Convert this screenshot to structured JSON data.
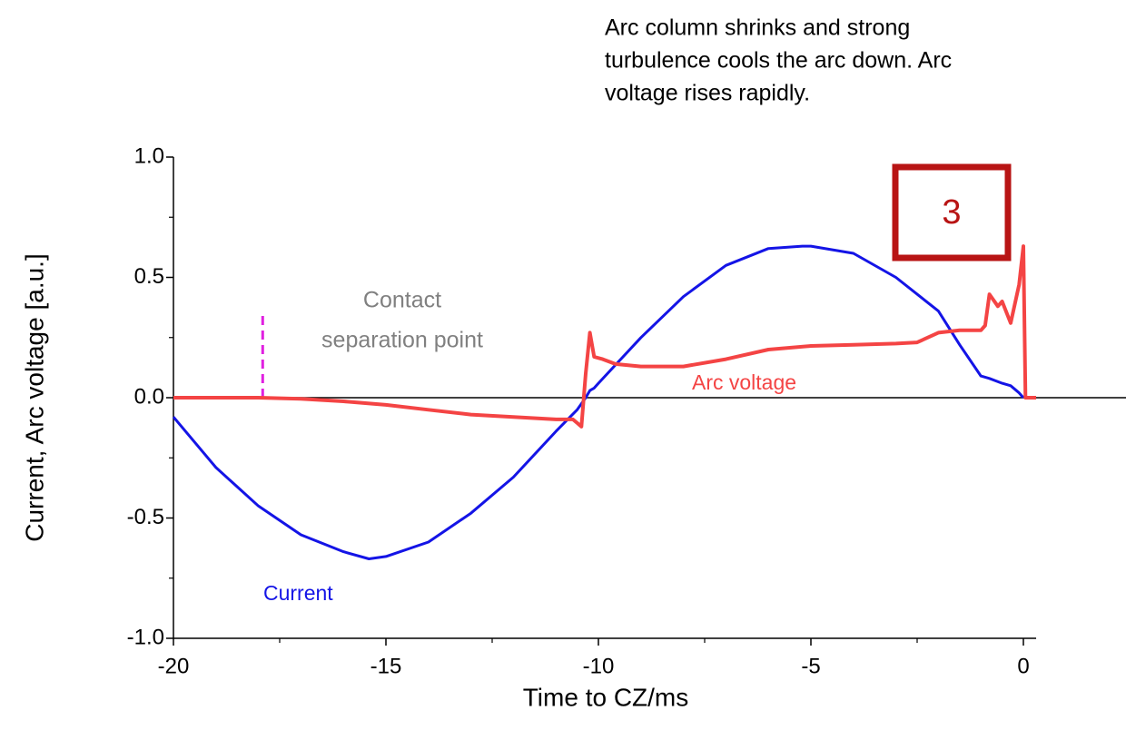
{
  "chart_data": {
    "type": "line",
    "xlabel": "Time to CZ/ms",
    "ylabel": "Current, Arc voltage [a.u.]",
    "xlim": [
      -20,
      0.3
    ],
    "ylim": [
      -1.0,
      1.0
    ],
    "xticks": [
      -20,
      -15,
      -10,
      -5,
      0
    ],
    "xminor_ticks": [
      -17.5,
      -12.5,
      -7.5,
      -2.5
    ],
    "yticks": [
      {
        "value": -1.0,
        "label": "-1.0"
      },
      {
        "value": -0.5,
        "label": "-0.5"
      },
      {
        "value": 0.0,
        "label": "0.0"
      },
      {
        "value": 0.5,
        "label": "0.5"
      },
      {
        "value": 1.0,
        "label": "1.0"
      }
    ],
    "yminor_ticks": [
      -0.75,
      -0.25,
      0.25,
      0.75
    ],
    "series": [
      {
        "name": "Current",
        "color": "#1414e6",
        "x": [
          -20,
          -19,
          -18,
          -17,
          -16,
          -15.4,
          -15,
          -14,
          -13,
          -12,
          -11,
          -10.5,
          -10.3,
          -10.2,
          -10.1,
          -10,
          -9,
          -8,
          -7,
          -6,
          -5.2,
          -5,
          -4,
          -3,
          -2,
          -1.5,
          -1,
          -0.8,
          -0.5,
          -0.3,
          -0.1,
          0
        ],
        "values": [
          -0.08,
          -0.29,
          -0.45,
          -0.57,
          -0.64,
          -0.67,
          -0.66,
          -0.6,
          -0.48,
          -0.33,
          -0.14,
          -0.05,
          0.0,
          0.03,
          0.04,
          0.06,
          0.25,
          0.42,
          0.55,
          0.62,
          0.63,
          0.63,
          0.6,
          0.5,
          0.36,
          0.22,
          0.09,
          0.08,
          0.06,
          0.05,
          0.02,
          0.0
        ]
      },
      {
        "name": "Arc voltage",
        "color": "#f44444",
        "x": [
          -20,
          -19,
          -18,
          -17,
          -16,
          -15,
          -14,
          -13,
          -12,
          -11,
          -10.6,
          -10.4,
          -10.3,
          -10.2,
          -10.1,
          -9.9,
          -9.6,
          -9,
          -8,
          -7,
          -6,
          -5,
          -4,
          -3,
          -2.5,
          -2,
          -1.5,
          -1,
          -0.9,
          -0.8,
          -0.6,
          -0.5,
          -0.3,
          -0.1,
          0,
          0.05,
          0.3
        ],
        "values": [
          0.0,
          0.0,
          0.0,
          -0.005,
          -0.015,
          -0.03,
          -0.05,
          -0.07,
          -0.08,
          -0.09,
          -0.09,
          -0.12,
          0.1,
          0.27,
          0.17,
          0.16,
          0.14,
          0.13,
          0.13,
          0.16,
          0.2,
          0.215,
          0.22,
          0.225,
          0.23,
          0.27,
          0.28,
          0.28,
          0.3,
          0.43,
          0.38,
          0.4,
          0.31,
          0.47,
          0.63,
          0.0,
          0.0
        ]
      }
    ],
    "contact_marker": {
      "x": -17.9,
      "y": 0.34,
      "color": "#e020e0"
    },
    "contact_label": [
      "Contact",
      "separation point"
    ],
    "note": [
      "Arc column shrinks and strong",
      "turbulence cools the arc down. Arc",
      "voltage rises rapidly."
    ],
    "stage_label": "3"
  }
}
